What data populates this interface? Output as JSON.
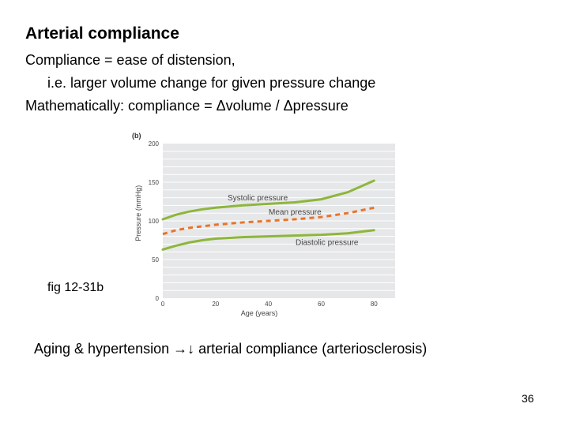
{
  "slide": {
    "title": "Arterial compliance",
    "line1": "Compliance = ease of distension,",
    "line2": "i.e. larger volume change for given pressure change",
    "line3": "Mathematically: compliance = Δvolume / Δpressure",
    "figure_caption": "fig 12-31b",
    "aging": {
      "prefix": "Aging & hypertension ",
      "arrows": "→↓",
      "suffix": " arterial compliance (arteriosclerosis)"
    },
    "page_number": "36"
  },
  "colors": {
    "chart_bg": "#e6e7e8",
    "grid": "#ffffff",
    "green_line": "#8db63c",
    "orange_dash": "#e8742a",
    "axis_text": "#444444"
  },
  "chart_data": {
    "type": "line",
    "panel_label": "(b)",
    "xlabel": "Age (years)",
    "ylabel": "Pressure (mmHg)",
    "xlim": [
      0,
      88
    ],
    "ylim": [
      0,
      200
    ],
    "xticks": [
      "0",
      "20",
      "40",
      "60",
      "80"
    ],
    "yticks": [
      "0",
      "50",
      "100",
      "150",
      "200"
    ],
    "grid": true,
    "series": [
      {
        "name": "Systolic pressure",
        "style": "solid",
        "x": [
          0,
          5,
          10,
          15,
          20,
          30,
          40,
          50,
          60,
          70,
          80
        ],
        "y": [
          102,
          108,
          112,
          115,
          117,
          120,
          122,
          124,
          128,
          137,
          152
        ]
      },
      {
        "name": "Mean pressure",
        "style": "dashed",
        "x": [
          0,
          5,
          10,
          15,
          20,
          30,
          40,
          50,
          60,
          70,
          80
        ],
        "y": [
          83,
          88,
          91,
          93,
          95,
          98,
          100,
          102,
          105,
          110,
          117
        ]
      },
      {
        "name": "Diastolic pressure",
        "style": "solid",
        "x": [
          0,
          5,
          10,
          15,
          20,
          30,
          40,
          50,
          60,
          70,
          80
        ],
        "y": [
          63,
          68,
          72,
          75,
          77,
          79,
          80,
          81,
          82,
          84,
          88
        ]
      }
    ]
  }
}
